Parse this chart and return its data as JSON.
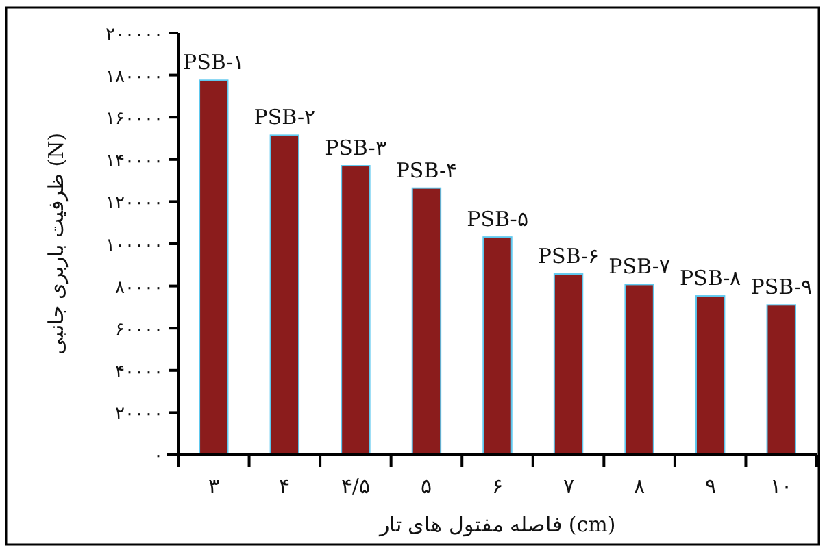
{
  "chart_data": {
    "type": "bar",
    "xlabel": "فاصله مفتول های تار (cm)",
    "ylabel": "ظرفیت باربری جانبی (N)",
    "categories": [
      "۳",
      "۴",
      "۴/۵",
      "۵",
      "۶",
      "۷",
      "۸",
      "۹",
      "۱۰"
    ],
    "values": [
      177500,
      151500,
      137000,
      126400,
      103200,
      85700,
      80700,
      75300,
      71000
    ],
    "value_labels": [
      "PSB-۱",
      "PSB-۲",
      "PSB-۳",
      "PSB-۴",
      "PSB-۵",
      "PSB-۶",
      "PSB-۷",
      "PSB-۸",
      "PSB-۹"
    ],
    "color": "#8b1c1c",
    "ylim": [
      0,
      200000
    ],
    "yticks": [
      {
        "value": 0,
        "label": "۰"
      },
      {
        "value": 20000,
        "label": "۲۰۰۰۰"
      },
      {
        "value": 40000,
        "label": "۴۰۰۰۰"
      },
      {
        "value": 60000,
        "label": "۶۰۰۰۰"
      },
      {
        "value": 80000,
        "label": "۸۰۰۰۰"
      },
      {
        "value": 100000,
        "label": "۱۰۰۰۰۰"
      },
      {
        "value": 120000,
        "label": "۱۲۰۰۰۰"
      },
      {
        "value": 140000,
        "label": "۱۴۰۰۰۰"
      },
      {
        "value": 160000,
        "label": "۱۶۰۰۰۰"
      },
      {
        "value": 180000,
        "label": "۱۸۰۰۰۰"
      },
      {
        "value": 200000,
        "label": "۲۰۰۰۰۰"
      }
    ]
  }
}
